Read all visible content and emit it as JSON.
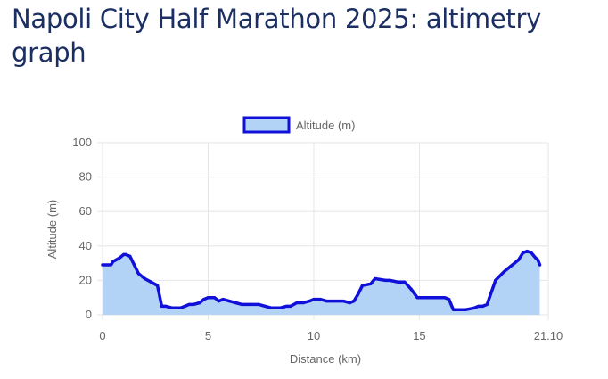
{
  "page": {
    "title": "Napoli City Half Marathon 2025: altimetry graph"
  },
  "chart_data": {
    "type": "area",
    "xlabel": "Distance (km)",
    "ylabel": "Altitude (m)",
    "xlim": [
      0,
      21.1
    ],
    "ylim": [
      0,
      100
    ],
    "x_ticks": [
      "0",
      "5",
      "10",
      "15",
      "21.10"
    ],
    "x_tick_values": [
      0,
      5,
      10,
      15,
      21.1
    ],
    "y_ticks": [
      "0",
      "20",
      "40",
      "60",
      "80",
      "100"
    ],
    "y_tick_values": [
      0,
      20,
      40,
      60,
      80,
      100
    ],
    "grid": true,
    "legend": {
      "position": "top-center"
    },
    "colors": {
      "line": "#1010d8",
      "fill": "#b3d3f6",
      "grid": "#e6e6e6",
      "tick_text": "#666666"
    },
    "series": [
      {
        "name": "Altitude (m)",
        "x": [
          0,
          0.4,
          0.5,
          0.8,
          1.0,
          1.1,
          1.3,
          1.5,
          1.7,
          2.0,
          2.3,
          2.6,
          2.8,
          2.9,
          3.0,
          3.3,
          3.5,
          3.7,
          3.9,
          4.1,
          4.3,
          4.6,
          4.8,
          5.0,
          5.1,
          5.3,
          5.5,
          5.7,
          6.0,
          6.3,
          6.6,
          7.0,
          7.4,
          7.7,
          8.0,
          8.4,
          8.7,
          8.9,
          9.2,
          9.5,
          9.8,
          10.0,
          10.3,
          10.6,
          11.0,
          11.4,
          11.7,
          11.9,
          12.1,
          12.3,
          12.7,
          12.9,
          13.4,
          13.6,
          14.0,
          14.3,
          14.6,
          14.9,
          15.3,
          15.6,
          16.0,
          16.2,
          16.4,
          16.6,
          16.9,
          17.2,
          17.6,
          17.8,
          18.0,
          18.2,
          18.6,
          19.0,
          19.3,
          19.5,
          19.7,
          19.9,
          20.1,
          20.3,
          20.5,
          20.6,
          20.7
        ],
        "y": [
          29,
          29,
          31,
          33,
          35,
          35,
          34,
          29,
          24,
          21,
          19,
          17,
          5,
          5,
          5,
          4,
          4,
          4,
          5,
          6,
          6,
          7,
          9,
          10,
          10,
          10,
          8,
          9,
          8,
          7,
          6,
          6,
          6,
          5,
          4,
          4,
          5,
          5,
          7,
          7,
          8,
          9,
          9,
          8,
          8,
          8,
          7,
          8,
          12,
          17,
          18,
          21,
          20,
          20,
          19,
          19,
          15,
          10,
          10,
          10,
          10,
          10,
          9,
          3,
          3,
          3,
          4,
          5,
          5,
          6,
          20,
          25,
          28,
          30,
          32,
          36,
          37,
          36,
          33,
          32,
          29
        ]
      }
    ]
  }
}
